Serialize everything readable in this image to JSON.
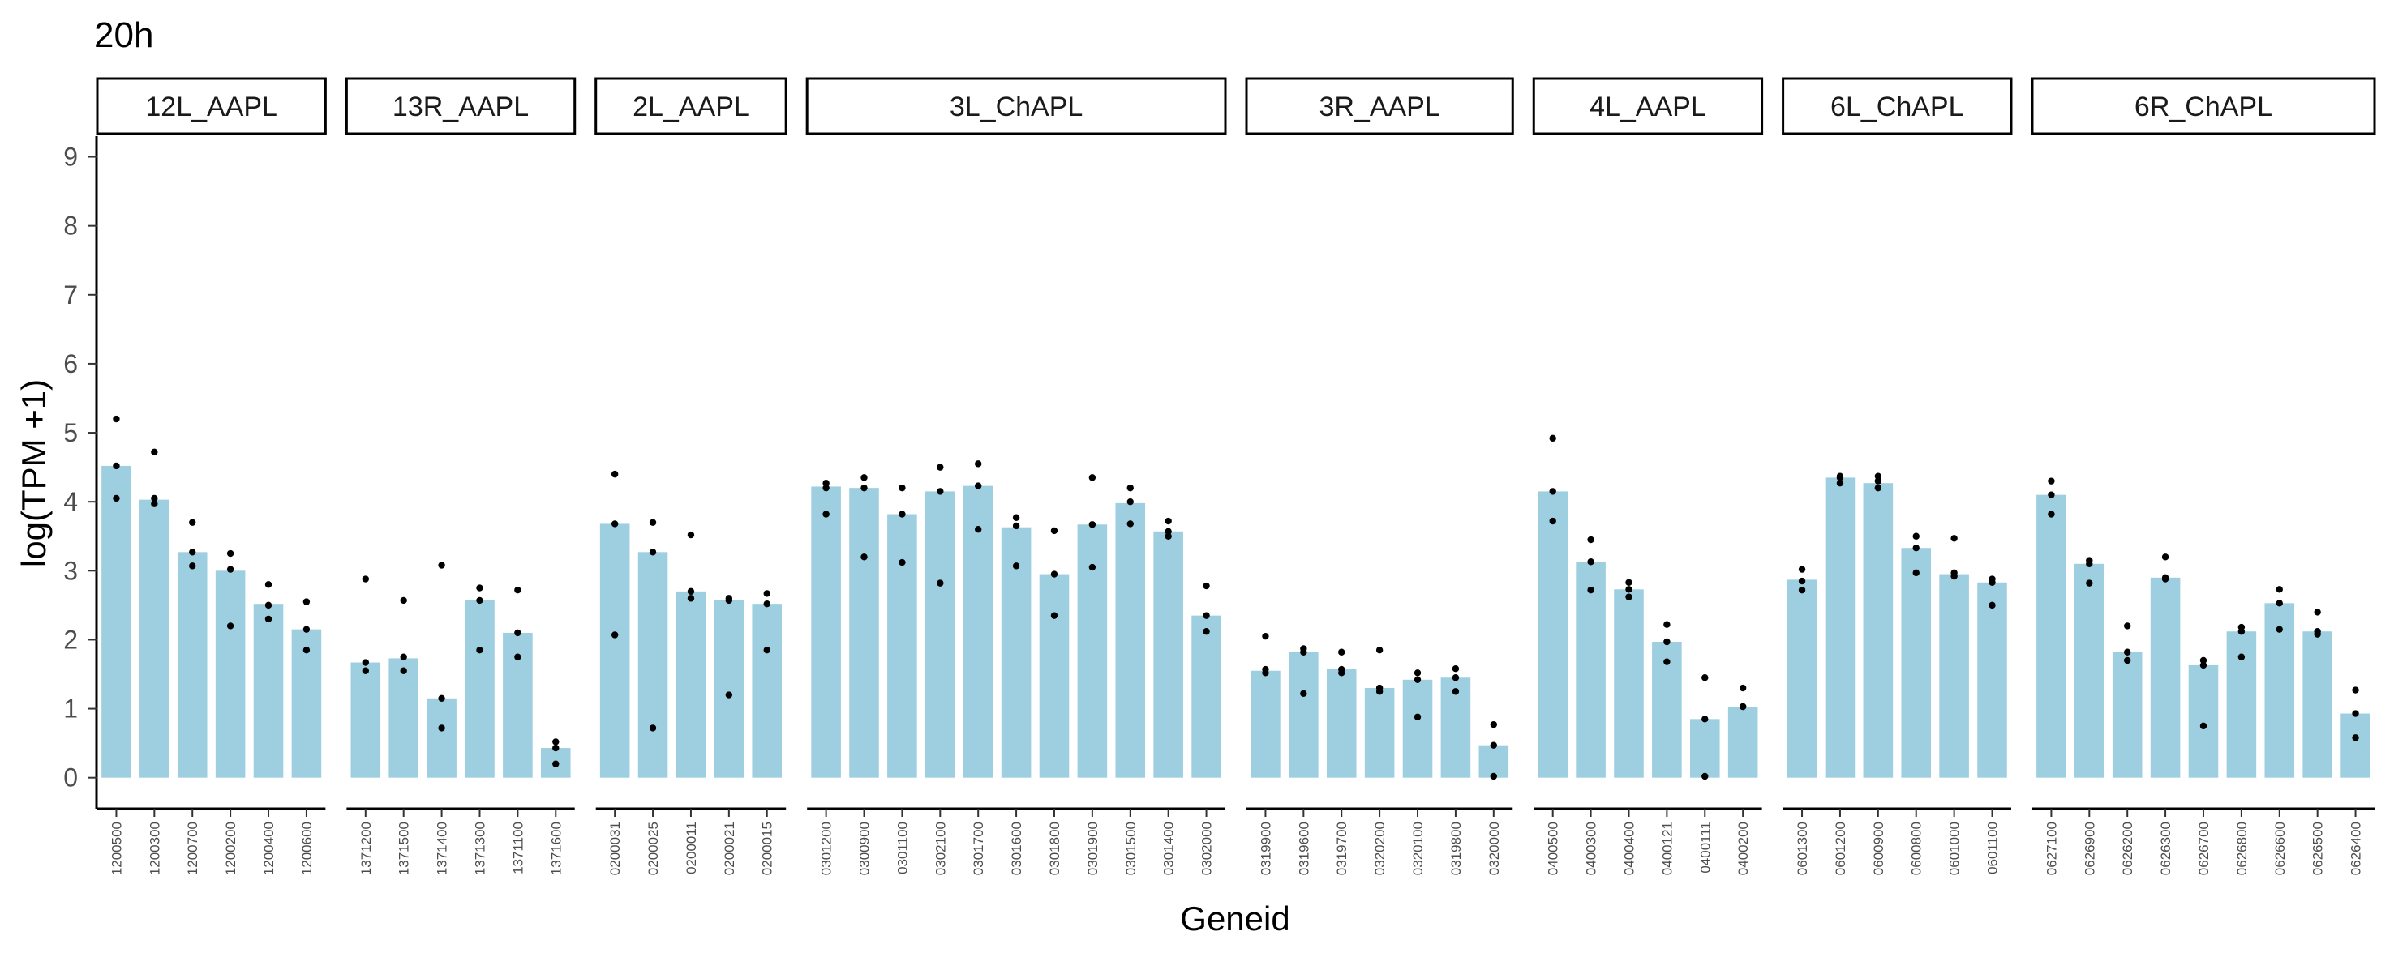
{
  "chart_data": {
    "type": "bar",
    "title": "20h",
    "xlabel": "Geneid",
    "ylabel": "log(TPM +1)",
    "ylim": [
      -0.45,
      9.3
    ],
    "yticks": [
      0,
      1,
      2,
      3,
      4,
      5,
      6,
      7,
      8,
      9
    ],
    "grid": false,
    "legend": "none",
    "bar_color": "#9ecfe0",
    "point_color": "#000000",
    "facets": [
      {
        "label": "12L_AAPL",
        "categories": [
          "1200500",
          "1200300",
          "1200700",
          "1200200",
          "1200400",
          "1200600"
        ],
        "values": [
          4.52,
          4.03,
          3.27,
          3.0,
          2.52,
          2.15
        ],
        "points": [
          [
            5.2,
            4.52,
            4.05
          ],
          [
            4.72,
            4.05,
            3.97
          ],
          [
            3.7,
            3.27,
            3.07
          ],
          [
            3.25,
            3.02,
            2.2
          ],
          [
            2.8,
            2.5,
            2.3
          ],
          [
            2.55,
            2.15,
            1.85
          ]
        ]
      },
      {
        "label": "13R_AAPL",
        "categories": [
          "1371200",
          "1371500",
          "1371400",
          "1371300",
          "1371100",
          "1371600"
        ],
        "values": [
          1.67,
          1.73,
          1.15,
          2.57,
          2.1,
          0.43
        ],
        "points": [
          [
            2.88,
            1.67,
            1.55
          ],
          [
            2.57,
            1.75,
            1.55
          ],
          [
            3.08,
            1.15,
            0.72
          ],
          [
            2.75,
            2.57,
            1.85
          ],
          [
            2.72,
            2.1,
            1.75
          ],
          [
            0.52,
            0.43,
            0.2
          ]
        ]
      },
      {
        "label": "2L_AAPL",
        "categories": [
          "0200031",
          "0200025",
          "0200011",
          "0200021",
          "0200015"
        ],
        "values": [
          3.68,
          3.27,
          2.7,
          2.57,
          2.52
        ],
        "points": [
          [
            4.4,
            3.68,
            2.07
          ],
          [
            3.7,
            3.27,
            0.72
          ],
          [
            3.52,
            2.7,
            2.6
          ],
          [
            2.6,
            2.57,
            1.2
          ],
          [
            2.67,
            2.52,
            1.85
          ]
        ]
      },
      {
        "label": "3L_ChAPL",
        "categories": [
          "0301200",
          "0300900",
          "0301100",
          "0302100",
          "0301700",
          "0301600",
          "0301800",
          "0301900",
          "0301500",
          "0301400",
          "0302000"
        ],
        "values": [
          4.22,
          4.2,
          3.82,
          4.15,
          4.23,
          3.63,
          2.95,
          3.67,
          3.98,
          3.57,
          2.35
        ],
        "points": [
          [
            4.27,
            4.2,
            3.82
          ],
          [
            4.35,
            4.2,
            3.2
          ],
          [
            4.2,
            3.82,
            3.12
          ],
          [
            4.5,
            4.15,
            2.82
          ],
          [
            4.55,
            4.23,
            3.6
          ],
          [
            3.77,
            3.65,
            3.07
          ],
          [
            3.58,
            2.95,
            2.35
          ],
          [
            4.35,
            3.67,
            3.05
          ],
          [
            4.2,
            4.0,
            3.68
          ],
          [
            3.72,
            3.57,
            3.5
          ],
          [
            2.78,
            2.35,
            2.12
          ]
        ]
      },
      {
        "label": "3R_AAPL",
        "categories": [
          "0319900",
          "0319600",
          "0319700",
          "0320200",
          "0320100",
          "0319800",
          "0320000"
        ],
        "values": [
          1.55,
          1.82,
          1.57,
          1.3,
          1.42,
          1.45,
          0.47
        ],
        "points": [
          [
            2.05,
            1.57,
            1.52
          ],
          [
            1.87,
            1.82,
            1.22
          ],
          [
            1.82,
            1.57,
            1.52
          ],
          [
            1.85,
            1.3,
            1.25
          ],
          [
            1.52,
            1.42,
            0.88
          ],
          [
            1.58,
            1.45,
            1.25
          ],
          [
            0.77,
            0.47,
            0.02
          ]
        ]
      },
      {
        "label": "4L_AAPL",
        "categories": [
          "0400500",
          "0400300",
          "0400400",
          "0400121",
          "0400111",
          "0400200"
        ],
        "values": [
          4.15,
          3.13,
          2.73,
          1.97,
          0.85,
          1.03
        ],
        "points": [
          [
            4.92,
            4.15,
            3.72
          ],
          [
            3.45,
            3.13,
            2.72
          ],
          [
            2.83,
            2.73,
            2.62
          ],
          [
            2.22,
            1.97,
            1.68
          ],
          [
            1.45,
            0.85,
            0.02
          ],
          [
            1.3,
            1.03,
            1.03
          ]
        ]
      },
      {
        "label": "6L_ChAPL",
        "categories": [
          "0601300",
          "0601200",
          "0600900",
          "0600800",
          "0601000",
          "0601100"
        ],
        "values": [
          2.87,
          4.35,
          4.27,
          3.33,
          2.95,
          2.83
        ],
        "points": [
          [
            3.02,
            2.85,
            2.72
          ],
          [
            4.37,
            4.35,
            4.27
          ],
          [
            4.37,
            4.3,
            4.2
          ],
          [
            3.5,
            3.33,
            2.97
          ],
          [
            3.47,
            2.97,
            2.92
          ],
          [
            2.88,
            2.83,
            2.5
          ]
        ]
      },
      {
        "label": "6R_ChAPL",
        "categories": [
          "0627100",
          "0626900",
          "0626200",
          "0626300",
          "0626700",
          "0626800",
          "0626600",
          "0626500",
          "0626400"
        ],
        "values": [
          4.1,
          3.1,
          1.82,
          2.9,
          1.63,
          2.12,
          2.53,
          2.12,
          0.93
        ],
        "points": [
          [
            4.3,
            4.1,
            3.82
          ],
          [
            3.15,
            3.1,
            2.82
          ],
          [
            2.2,
            1.82,
            1.7
          ],
          [
            3.2,
            2.9,
            2.88
          ],
          [
            1.7,
            1.63,
            0.75
          ],
          [
            2.18,
            2.12,
            1.75
          ],
          [
            2.73,
            2.53,
            2.15
          ],
          [
            2.4,
            2.12,
            2.08
          ],
          [
            1.27,
            0.93,
            0.58
          ]
        ]
      }
    ]
  }
}
